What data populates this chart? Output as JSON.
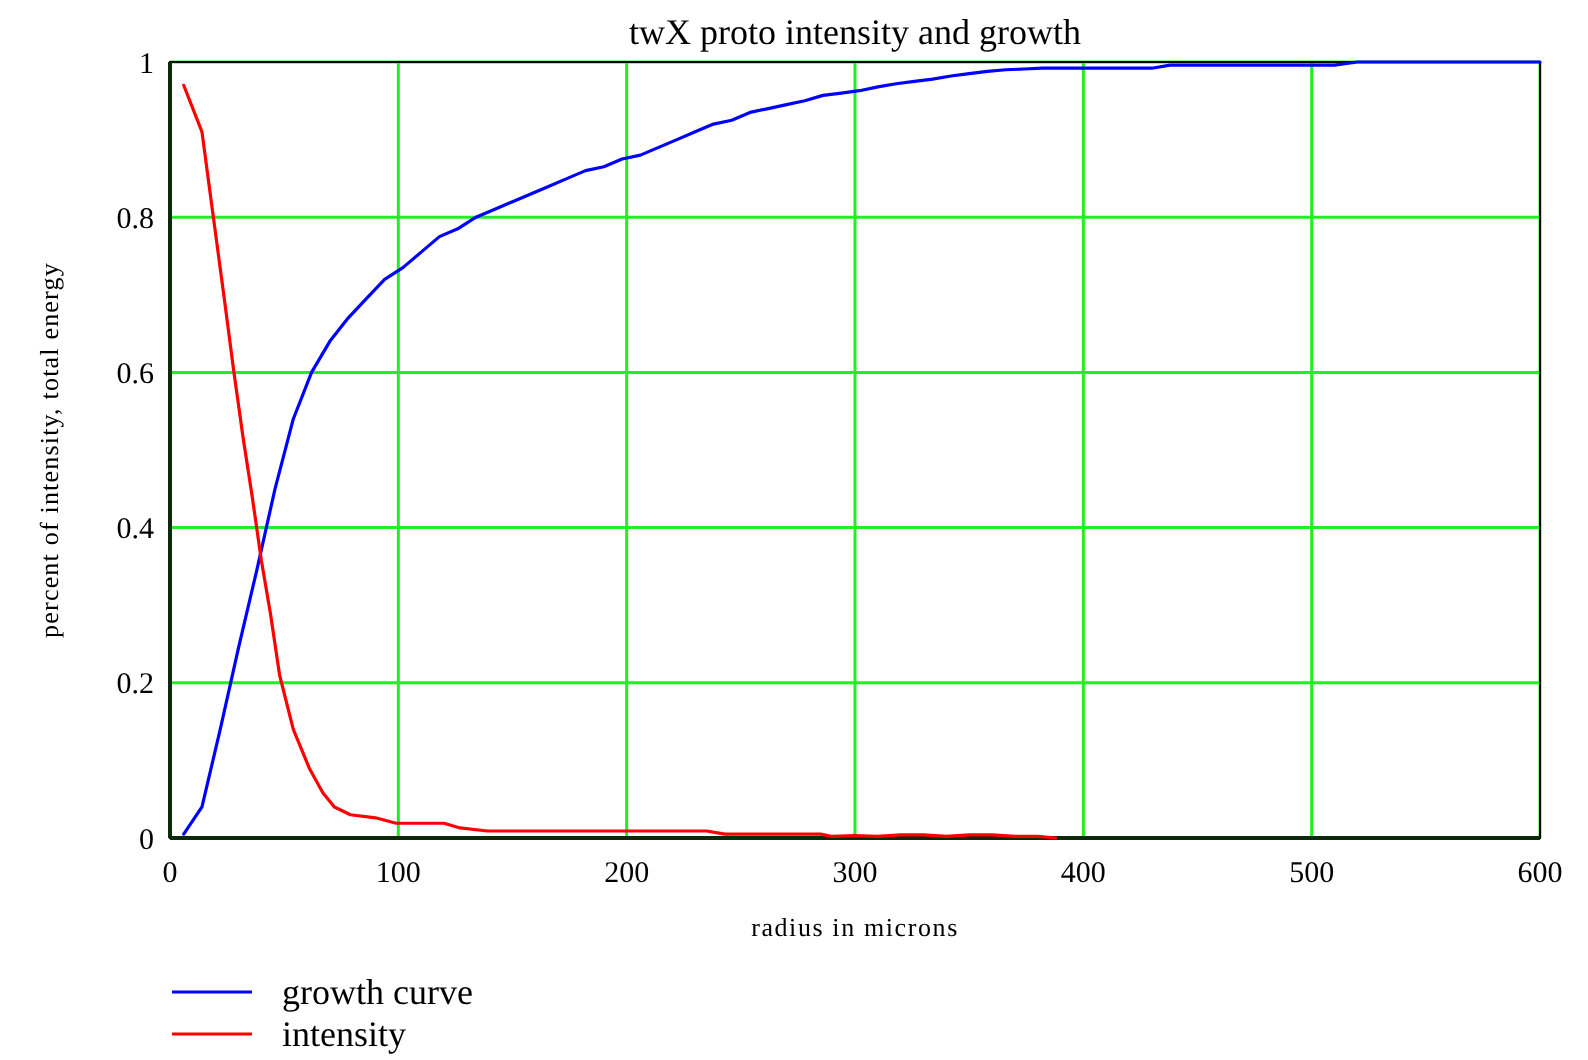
{
  "chart_data": {
    "type": "line",
    "title": "twX proto intensity and growth",
    "xlabel": "radius in microns",
    "ylabel": "percent of intensity, total energy",
    "xlim": [
      0,
      600
    ],
    "ylim": [
      0,
      1
    ],
    "xticks": [
      0,
      100,
      200,
      300,
      400,
      500,
      600
    ],
    "yticks": [
      0,
      0.2,
      0.4,
      0.6,
      0.8,
      1
    ],
    "grid": true,
    "legend": "bottom left",
    "series": [
      {
        "name": "growth curve",
        "color": "#0000ff",
        "x": [
          6,
          14,
          22,
          30,
          38,
          46,
          54,
          62,
          70,
          78,
          86,
          94,
          102,
          110,
          118,
          126,
          134,
          142,
          150,
          158,
          166,
          174,
          182,
          190,
          198,
          206,
          214,
          222,
          230,
          238,
          246,
          254,
          262,
          270,
          278,
          286,
          294,
          302,
          310,
          318,
          326,
          334,
          342,
          350,
          358,
          366,
          374,
          382,
          430,
          438,
          510,
          520,
          600
        ],
        "values": [
          0.005,
          0.04,
          0.14,
          0.245,
          0.345,
          0.45,
          0.54,
          0.6,
          0.64,
          0.67,
          0.695,
          0.72,
          0.735,
          0.755,
          0.775,
          0.785,
          0.8,
          0.81,
          0.82,
          0.83,
          0.84,
          0.85,
          0.86,
          0.865,
          0.875,
          0.88,
          0.89,
          0.9,
          0.91,
          0.92,
          0.925,
          0.935,
          0.94,
          0.945,
          0.95,
          0.957,
          0.96,
          0.963,
          0.968,
          0.972,
          0.975,
          0.978,
          0.982,
          0.985,
          0.988,
          0.99,
          0.991,
          0.992,
          0.992,
          0.996,
          0.996,
          1,
          1
        ]
      },
      {
        "name": "intensity",
        "color": "#ff0000",
        "x": [
          6,
          14,
          19,
          24,
          28,
          32,
          36,
          40,
          44,
          48,
          54,
          61,
          67,
          72,
          79,
          90,
          99,
          120,
          127,
          139,
          235,
          243,
          285,
          290,
          300,
          310,
          320,
          330,
          340,
          350,
          360,
          370,
          380,
          388
        ],
        "values": [
          0.97,
          0.91,
          0.8,
          0.69,
          0.6,
          0.516,
          0.44,
          0.358,
          0.289,
          0.21,
          0.14,
          0.09,
          0.058,
          0.04,
          0.03,
          0.026,
          0.019,
          0.019,
          0.013,
          0.009,
          0.009,
          0.005,
          0.005,
          0.002,
          0.003,
          0.002,
          0.004,
          0.004,
          0.002,
          0.004,
          0.004,
          0.002,
          0.002,
          0
        ]
      }
    ]
  }
}
